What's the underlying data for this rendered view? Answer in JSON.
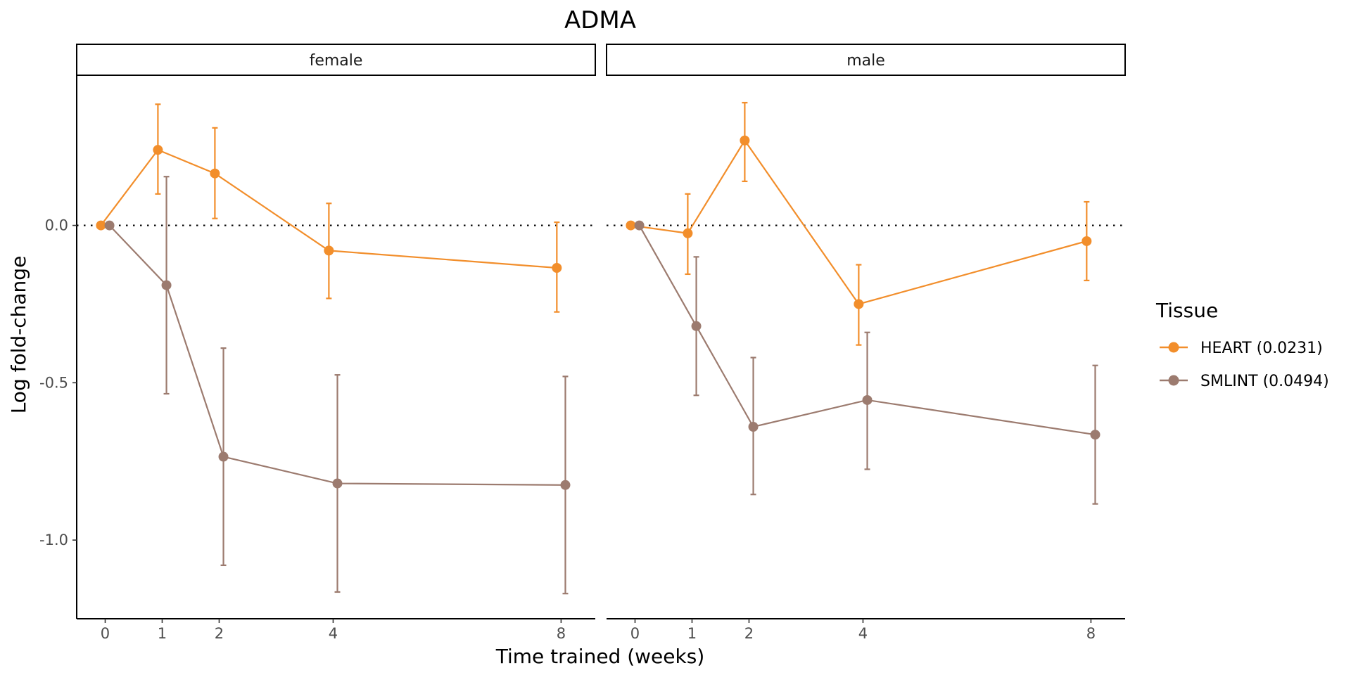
{
  "chart_data": {
    "type": "line",
    "title": "ADMA",
    "xlabel": "Time trained (weeks)",
    "ylabel": "Log fold-change",
    "x_ticks": [
      0,
      1,
      2,
      4,
      8
    ],
    "y_ticks": [
      0.0,
      -0.5,
      -1.0
    ],
    "y_tick_labels": [
      "0.0",
      "-0.5",
      "-1.0"
    ],
    "ylim": [
      -1.25,
      0.475
    ],
    "xlim": [
      -0.5,
      8.6
    ],
    "reference_line": {
      "y": 0,
      "style": "dotted"
    },
    "legend": {
      "title": "Tissue",
      "position": "right",
      "entries": [
        {
          "label": "HEART (0.0231)",
          "color": "#F28E2B"
        },
        {
          "label": "SMLINT (0.0494)",
          "color": "#9C7B6F"
        }
      ]
    },
    "facets": [
      {
        "label": "female",
        "series": [
          {
            "tissue": "HEART",
            "color": "#F28E2B",
            "points": [
              {
                "x": 0,
                "y": 0.0,
                "lo": null,
                "hi": null
              },
              {
                "x": 1,
                "y": 0.24,
                "lo": 0.1,
                "hi": 0.385
              },
              {
                "x": 2,
                "y": 0.165,
                "lo": 0.022,
                "hi": 0.31
              },
              {
                "x": 4,
                "y": -0.08,
                "lo": -0.232,
                "hi": 0.07
              },
              {
                "x": 8,
                "y": -0.135,
                "lo": -0.275,
                "hi": 0.01
              }
            ]
          },
          {
            "tissue": "SMLINT",
            "color": "#9C7B6F",
            "points": [
              {
                "x": 0,
                "y": 0.0,
                "lo": null,
                "hi": null
              },
              {
                "x": 1,
                "y": -0.19,
                "lo": -0.535,
                "hi": 0.155
              },
              {
                "x": 2,
                "y": -0.735,
                "lo": -1.08,
                "hi": -0.39
              },
              {
                "x": 4,
                "y": -0.82,
                "lo": -1.165,
                "hi": -0.475
              },
              {
                "x": 8,
                "y": -0.825,
                "lo": -1.17,
                "hi": -0.48
              }
            ]
          }
        ]
      },
      {
        "label": "male",
        "series": [
          {
            "tissue": "HEART",
            "color": "#F28E2B",
            "points": [
              {
                "x": 0,
                "y": 0.0,
                "lo": null,
                "hi": null
              },
              {
                "x": 1,
                "y": -0.025,
                "lo": -0.155,
                "hi": 0.1
              },
              {
                "x": 2,
                "y": 0.27,
                "lo": 0.14,
                "hi": 0.39
              },
              {
                "x": 4,
                "y": -0.25,
                "lo": -0.38,
                "hi": -0.125
              },
              {
                "x": 8,
                "y": -0.05,
                "lo": -0.175,
                "hi": 0.075
              }
            ]
          },
          {
            "tissue": "SMLINT",
            "color": "#9C7B6F",
            "points": [
              {
                "x": 0,
                "y": 0.0,
                "lo": null,
                "hi": null
              },
              {
                "x": 1,
                "y": -0.32,
                "lo": -0.54,
                "hi": -0.1
              },
              {
                "x": 2,
                "y": -0.64,
                "lo": -0.855,
                "hi": -0.42
              },
              {
                "x": 4,
                "y": -0.555,
                "lo": -0.775,
                "hi": -0.34
              },
              {
                "x": 8,
                "y": -0.665,
                "lo": -0.885,
                "hi": -0.445
              }
            ]
          }
        ]
      }
    ]
  }
}
